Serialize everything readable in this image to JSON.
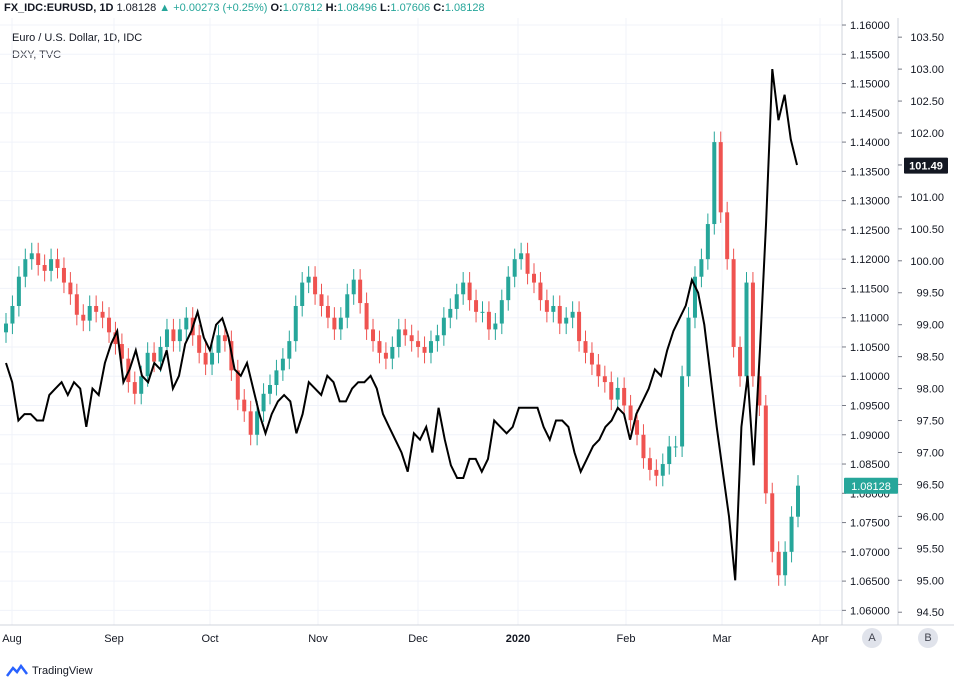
{
  "header": {
    "symbol": "FX_IDC:EURUSD, 1D",
    "last": "1.08128",
    "change": "+0.00273 (+0.25%)",
    "open_label": "O:",
    "open": "1.07812",
    "high_label": "H:",
    "high": "1.08496",
    "low_label": "L:",
    "low": "1.07606",
    "close_label": "C:",
    "close": "1.08128"
  },
  "legend": {
    "main_series": "Euro / U.S. Dollar, 1D, IDC",
    "compare_series": "DXY, TVC"
  },
  "footer": {
    "brand": "TradingView"
  },
  "axis_buttons": {
    "a": "A",
    "b": "B"
  },
  "chart_data": {
    "type": "line",
    "x_labels": [
      "Aug",
      "Sep",
      "Oct",
      "Nov",
      "Dec",
      "2020",
      "Feb",
      "Mar",
      "Apr"
    ],
    "right_axis_eurusd": {
      "ticks": [
        "1.16000",
        "1.15500",
        "1.15000",
        "1.14500",
        "1.14000",
        "1.13500",
        "1.13000",
        "1.12500",
        "1.12000",
        "1.11500",
        "1.11000",
        "1.10500",
        "1.10000",
        "1.09500",
        "1.09000",
        "1.08500",
        "1.08000",
        "1.07500",
        "1.07000",
        "1.06500",
        "1.06000"
      ],
      "range": [
        1.0575,
        1.1612
      ]
    },
    "right_axis_dxy": {
      "ticks": [
        "103.50",
        "103.00",
        "102.50",
        "102.00",
        "101.50",
        "101.00",
        "100.50",
        "100.00",
        "99.50",
        "99.00",
        "98.50",
        "98.00",
        "97.50",
        "97.00",
        "96.50",
        "96.00",
        "95.50",
        "95.00",
        "94.50"
      ],
      "range": [
        94.3,
        103.8
      ]
    },
    "price_tags": {
      "dxy_last": "101.49",
      "eurusd_last": "1.08128"
    },
    "colors": {
      "up": "#26a69a",
      "down": "#ef5350",
      "dxy_line": "#000000",
      "dxy_tag": "#131722",
      "eur_tag": "#26a69a"
    },
    "series": [
      {
        "name": "DXY, TVC",
        "style": "line",
        "y_axis": "dxy",
        "values": [
          98.4,
          98.1,
          97.5,
          97.6,
          97.6,
          97.5,
          97.5,
          97.9,
          98.0,
          98.1,
          97.9,
          98.1,
          98.0,
          97.4,
          98.0,
          97.9,
          98.4,
          98.7,
          98.9,
          98.1,
          98.3,
          98.6,
          98.2,
          98.1,
          98.4,
          98.3,
          98.6,
          98.0,
          98.2,
          98.7,
          98.9,
          99.2,
          98.8,
          98.6,
          99.0,
          99.1,
          98.8,
          98.3,
          98.2,
          98.4,
          98.0,
          97.6,
          97.3,
          97.6,
          97.8,
          97.9,
          97.8,
          97.3,
          97.6,
          98.1,
          98.0,
          97.9,
          98.2,
          98.1,
          97.8,
          97.8,
          98.0,
          98.1,
          98.1,
          98.2,
          98.0,
          97.6,
          97.4,
          97.2,
          97.0,
          96.7,
          97.3,
          97.2,
          97.4,
          97.0,
          97.7,
          97.2,
          96.8,
          96.6,
          96.6,
          96.9,
          96.9,
          96.7,
          96.9,
          97.5,
          97.4,
          97.3,
          97.4,
          97.7,
          97.7,
          97.7,
          97.7,
          97.4,
          97.2,
          97.5,
          97.5,
          97.4,
          97.0,
          96.7,
          96.9,
          97.1,
          97.2,
          97.4,
          97.5,
          97.7,
          97.6,
          97.2,
          97.6,
          97.8,
          98.0,
          98.3,
          98.2,
          98.6,
          98.9,
          99.1,
          99.3,
          99.7,
          99.5,
          99.0,
          98.2,
          97.4,
          96.7,
          96.0,
          95.0,
          97.4,
          98.2,
          96.8,
          98.6,
          100.6,
          103.0,
          102.2,
          102.6,
          101.9,
          101.5
        ],
        "notes": "daily closes, Aug 2019 - Mar 2020"
      },
      {
        "name": "Euro / U.S. Dollar, 1D, IDC",
        "style": "candles",
        "y_axis": "eurusd",
        "closes": [
          1.109,
          1.112,
          1.117,
          1.12,
          1.121,
          1.119,
          1.118,
          1.12,
          1.1185,
          1.116,
          1.114,
          1.1105,
          1.1095,
          1.112,
          1.111,
          1.11,
          1.1075,
          1.1055,
          1.103,
          1.099,
          1.097,
          1.1,
          1.104,
          1.1025,
          1.105,
          1.108,
          1.106,
          1.108,
          1.11,
          1.107,
          1.104,
          1.102,
          1.104,
          1.107,
          1.106,
          1.101,
          1.096,
          1.094,
          1.09,
          1.094,
          1.097,
          1.0985,
          1.101,
          1.103,
          1.106,
          1.112,
          1.116,
          1.117,
          1.114,
          1.112,
          1.11,
          1.108,
          1.11,
          1.114,
          1.1165,
          1.1125,
          1.108,
          1.106,
          1.104,
          1.103,
          1.105,
          1.108,
          1.107,
          1.106,
          1.105,
          1.104,
          1.106,
          1.107,
          1.11,
          1.1115,
          1.114,
          1.116,
          1.113,
          1.111,
          1.111,
          1.108,
          1.109,
          1.113,
          1.117,
          1.12,
          1.121,
          1.1175,
          1.116,
          1.113,
          1.111,
          1.112,
          1.109,
          1.11,
          1.111,
          1.106,
          1.104,
          1.102,
          1.1,
          1.099,
          1.096,
          1.098,
          1.095,
          1.0925,
          1.09,
          1.086,
          1.084,
          1.083,
          1.085,
          1.088,
          1.088,
          1.1,
          1.11,
          1.117,
          1.12,
          1.126,
          1.14,
          1.128,
          1.12,
          1.105,
          1.1,
          1.116,
          1.1,
          1.095,
          1.08,
          1.07,
          1.066,
          1.07,
          1.076,
          1.0813
        ],
        "notes": "daily candles Aug 2019 - Mar 2020; last O:1.07812 H:1.08496 L:1.07606 C:1.08128"
      }
    ]
  }
}
